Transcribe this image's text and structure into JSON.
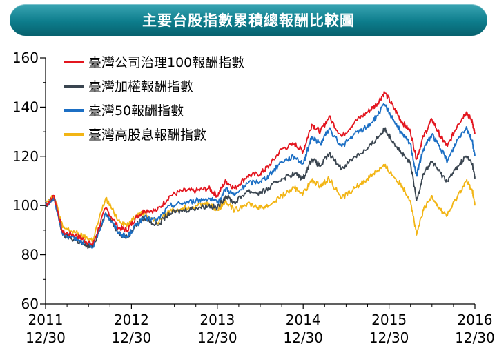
{
  "chart_data": {
    "type": "line",
    "title": "主要台股指數累積總報酬比較圖",
    "ylim": [
      60,
      160
    ],
    "yticks": [
      60,
      80,
      100,
      120,
      140,
      160
    ],
    "xlim": [
      2011.0,
      2016.0
    ],
    "xticks": [
      {
        "value": 2011.0,
        "year": "2011",
        "date": "12/30"
      },
      {
        "value": 2012.0,
        "year": "2012",
        "date": "12/30"
      },
      {
        "value": 2013.0,
        "year": "2013",
        "date": "12/30"
      },
      {
        "value": 2014.0,
        "year": "2014",
        "date": "12/30"
      },
      {
        "value": 2015.0,
        "year": "2015",
        "date": "12/30"
      },
      {
        "value": 2016.0,
        "year": "2016",
        "date": "12/30"
      }
    ],
    "legend_position": "top-left",
    "grid": false,
    "series": [
      {
        "name": "臺灣公司治理100報酬指數",
        "color": "#e3161f",
        "points": [
          [
            2011.0,
            100
          ],
          [
            2011.1,
            104
          ],
          [
            2011.2,
            89
          ],
          [
            2011.35,
            88
          ],
          [
            2011.45,
            86
          ],
          [
            2011.55,
            84
          ],
          [
            2011.7,
            99
          ],
          [
            2011.85,
            91
          ],
          [
            2011.95,
            90
          ],
          [
            2012.05,
            95
          ],
          [
            2012.15,
            98
          ],
          [
            2012.3,
            98
          ],
          [
            2012.45,
            104
          ],
          [
            2012.6,
            106
          ],
          [
            2012.75,
            106
          ],
          [
            2012.9,
            107
          ],
          [
            2013.0,
            104
          ],
          [
            2013.1,
            110
          ],
          [
            2013.2,
            107
          ],
          [
            2013.35,
            112
          ],
          [
            2013.5,
            113
          ],
          [
            2013.6,
            116
          ],
          [
            2013.75,
            123
          ],
          [
            2013.9,
            125
          ],
          [
            2014.0,
            122
          ],
          [
            2014.1,
            133
          ],
          [
            2014.2,
            130
          ],
          [
            2014.3,
            136
          ],
          [
            2014.45,
            128
          ],
          [
            2014.6,
            134
          ],
          [
            2014.75,
            138
          ],
          [
            2014.85,
            141
          ],
          [
            2014.95,
            146
          ],
          [
            2015.05,
            140
          ],
          [
            2015.15,
            134
          ],
          [
            2015.25,
            130
          ],
          [
            2015.32,
            119
          ],
          [
            2015.4,
            128
          ],
          [
            2015.5,
            135
          ],
          [
            2015.6,
            128
          ],
          [
            2015.68,
            124
          ],
          [
            2015.8,
            133
          ],
          [
            2015.9,
            138
          ],
          [
            2015.97,
            134
          ],
          [
            2016.0,
            129
          ]
        ]
      },
      {
        "name": "臺灣加權報酬指數",
        "color": "#3a4550",
        "points": [
          [
            2011.0,
            99
          ],
          [
            2011.1,
            103
          ],
          [
            2011.2,
            88
          ],
          [
            2011.35,
            86
          ],
          [
            2011.45,
            84
          ],
          [
            2011.55,
            83
          ],
          [
            2011.7,
            97
          ],
          [
            2011.85,
            89
          ],
          [
            2011.95,
            87
          ],
          [
            2012.05,
            92
          ],
          [
            2012.15,
            95
          ],
          [
            2012.3,
            92
          ],
          [
            2012.45,
            97
          ],
          [
            2012.6,
            98
          ],
          [
            2012.75,
            99
          ],
          [
            2012.9,
            100
          ],
          [
            2013.0,
            99
          ],
          [
            2013.1,
            104
          ],
          [
            2013.2,
            101
          ],
          [
            2013.35,
            106
          ],
          [
            2013.5,
            105
          ],
          [
            2013.6,
            107
          ],
          [
            2013.75,
            111
          ],
          [
            2013.9,
            113
          ],
          [
            2014.0,
            111
          ],
          [
            2014.1,
            119
          ],
          [
            2014.2,
            116
          ],
          [
            2014.3,
            121
          ],
          [
            2014.45,
            115
          ],
          [
            2014.6,
            120
          ],
          [
            2014.75,
            123
          ],
          [
            2014.85,
            127
          ],
          [
            2014.95,
            131
          ],
          [
            2015.05,
            126
          ],
          [
            2015.15,
            121
          ],
          [
            2015.25,
            117
          ],
          [
            2015.32,
            102
          ],
          [
            2015.4,
            113
          ],
          [
            2015.5,
            118
          ],
          [
            2015.6,
            113
          ],
          [
            2015.68,
            110
          ],
          [
            2015.8,
            116
          ],
          [
            2015.9,
            120
          ],
          [
            2015.97,
            117
          ],
          [
            2016.0,
            111
          ]
        ]
      },
      {
        "name": "臺灣50報酬指數",
        "color": "#1c6fc4",
        "points": [
          [
            2011.0,
            100
          ],
          [
            2011.1,
            103
          ],
          [
            2011.2,
            88
          ],
          [
            2011.35,
            87
          ],
          [
            2011.45,
            85
          ],
          [
            2011.55,
            83
          ],
          [
            2011.7,
            97
          ],
          [
            2011.85,
            89
          ],
          [
            2011.95,
            87
          ],
          [
            2012.05,
            92
          ],
          [
            2012.15,
            95
          ],
          [
            2012.3,
            94
          ],
          [
            2012.45,
            100
          ],
          [
            2012.6,
            101
          ],
          [
            2012.75,
            102
          ],
          [
            2012.9,
            103
          ],
          [
            2013.0,
            101
          ],
          [
            2013.1,
            107
          ],
          [
            2013.2,
            104
          ],
          [
            2013.35,
            109
          ],
          [
            2013.5,
            110
          ],
          [
            2013.6,
            112
          ],
          [
            2013.75,
            118
          ],
          [
            2013.9,
            120
          ],
          [
            2014.0,
            117
          ],
          [
            2014.1,
            128
          ],
          [
            2014.2,
            125
          ],
          [
            2014.3,
            131
          ],
          [
            2014.45,
            124
          ],
          [
            2014.6,
            129
          ],
          [
            2014.75,
            132
          ],
          [
            2014.85,
            136
          ],
          [
            2014.95,
            141
          ],
          [
            2015.05,
            135
          ],
          [
            2015.15,
            129
          ],
          [
            2015.25,
            125
          ],
          [
            2015.32,
            112
          ],
          [
            2015.4,
            123
          ],
          [
            2015.5,
            129
          ],
          [
            2015.6,
            123
          ],
          [
            2015.68,
            118
          ],
          [
            2015.8,
            127
          ],
          [
            2015.9,
            132
          ],
          [
            2015.97,
            126
          ],
          [
            2016.0,
            120
          ]
        ]
      },
      {
        "name": "臺灣高股息報酬指數",
        "color": "#f2b515",
        "points": [
          [
            2011.0,
            102
          ],
          [
            2011.1,
            104
          ],
          [
            2011.2,
            91
          ],
          [
            2011.35,
            89
          ],
          [
            2011.45,
            87
          ],
          [
            2011.55,
            86
          ],
          [
            2011.7,
            103
          ],
          [
            2011.85,
            94
          ],
          [
            2011.95,
            92
          ],
          [
            2012.05,
            96
          ],
          [
            2012.15,
            97
          ],
          [
            2012.3,
            93
          ],
          [
            2012.45,
            98
          ],
          [
            2012.6,
            99
          ],
          [
            2012.75,
            100
          ],
          [
            2012.9,
            101
          ],
          [
            2013.0,
            98
          ],
          [
            2013.1,
            102
          ],
          [
            2013.2,
            98
          ],
          [
            2013.35,
            101
          ],
          [
            2013.5,
            99
          ],
          [
            2013.6,
            100
          ],
          [
            2013.75,
            104
          ],
          [
            2013.9,
            107
          ],
          [
            2014.0,
            105
          ],
          [
            2014.1,
            110
          ],
          [
            2014.2,
            108
          ],
          [
            2014.3,
            111
          ],
          [
            2014.45,
            103
          ],
          [
            2014.6,
            107
          ],
          [
            2014.75,
            111
          ],
          [
            2014.85,
            114
          ],
          [
            2014.95,
            116
          ],
          [
            2015.05,
            112
          ],
          [
            2015.15,
            108
          ],
          [
            2015.25,
            102
          ],
          [
            2015.32,
            88
          ],
          [
            2015.4,
            98
          ],
          [
            2015.5,
            104
          ],
          [
            2015.6,
            98
          ],
          [
            2015.68,
            96
          ],
          [
            2015.8,
            104
          ],
          [
            2015.9,
            110
          ],
          [
            2015.97,
            106
          ],
          [
            2016.0,
            100
          ]
        ]
      }
    ]
  }
}
